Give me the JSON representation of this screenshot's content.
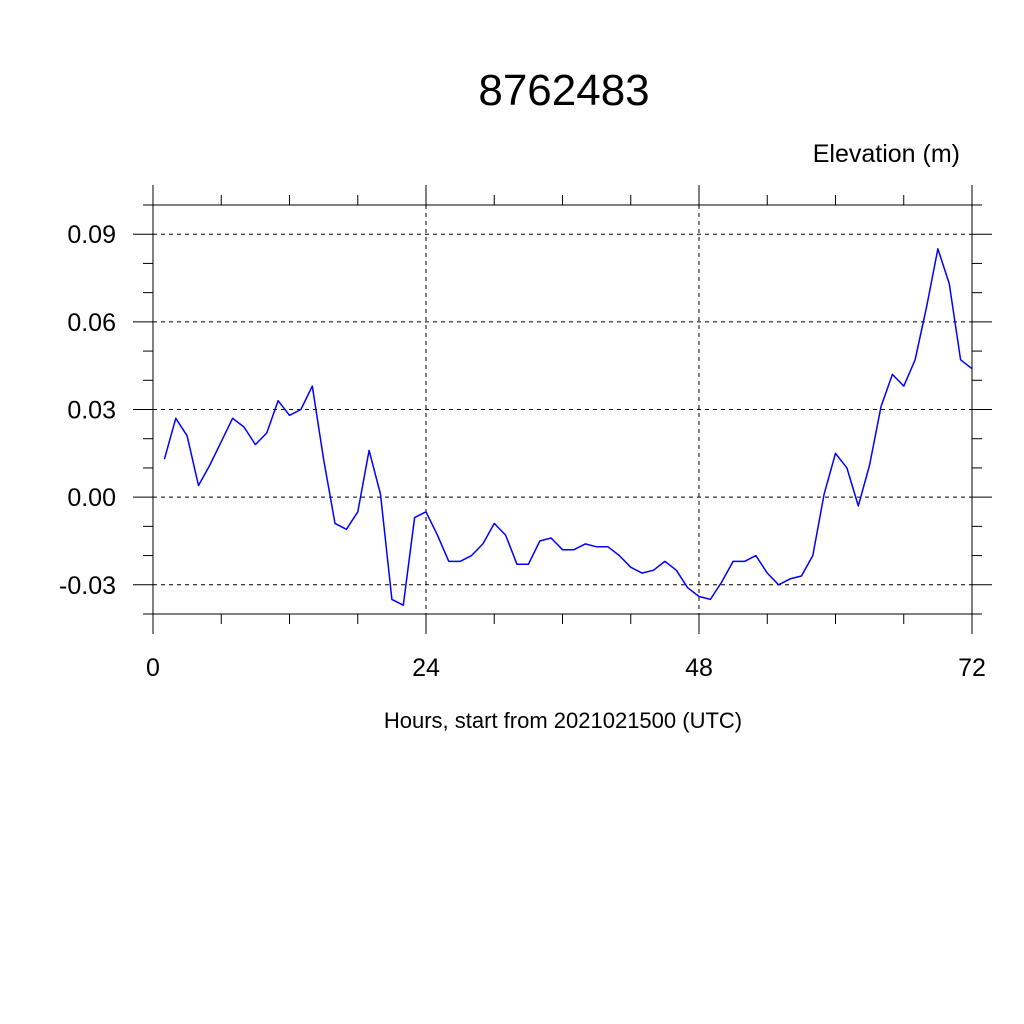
{
  "chart_data": {
    "type": "line",
    "title": "8762483",
    "unit_label": "Elevation (m)",
    "xlabel": "Hours, start from 2021021500 (UTC)",
    "ylabel": "",
    "xlim": [
      0,
      72
    ],
    "ylim": [
      -0.04,
      0.1
    ],
    "x_ticks": [
      0,
      24,
      48,
      72
    ],
    "x_tick_labels": [
      "0",
      "24",
      "48",
      "72"
    ],
    "y_ticks": [
      -0.03,
      0.0,
      0.03,
      0.06,
      0.09
    ],
    "y_tick_labels": [
      "-0.03",
      "0.00",
      "0.03",
      "0.06",
      "0.09"
    ],
    "grid": true,
    "grid_style": "dashed",
    "line_color": "#0000ff",
    "series": [
      {
        "x": [
          1,
          2,
          3,
          4,
          5,
          6,
          7,
          8,
          9,
          10,
          11,
          12,
          13,
          14,
          15,
          16,
          17,
          18,
          19,
          20,
          21,
          22,
          23,
          24,
          25,
          26,
          27,
          28,
          29,
          30,
          31,
          32,
          33,
          34,
          35,
          36,
          37,
          38,
          39,
          40,
          41,
          42,
          43,
          44,
          45,
          46,
          47,
          48,
          49,
          50,
          51,
          52,
          53,
          54,
          55,
          56,
          57,
          58,
          59,
          60,
          61,
          62,
          63,
          64,
          65,
          66,
          67,
          68,
          69,
          70,
          71,
          72
        ],
        "values": [
          0.013,
          0.027,
          0.021,
          0.004,
          0.011,
          0.019,
          0.027,
          0.024,
          0.018,
          0.022,
          0.033,
          0.028,
          0.03,
          0.038,
          0.013,
          -0.009,
          -0.011,
          -0.005,
          0.016,
          0.001,
          -0.035,
          -0.037,
          -0.007,
          -0.005,
          -0.013,
          -0.022,
          -0.022,
          -0.02,
          -0.016,
          -0.009,
          -0.013,
          -0.023,
          -0.023,
          -0.015,
          -0.014,
          -0.018,
          -0.018,
          -0.016,
          -0.017,
          -0.017,
          -0.02,
          -0.024,
          -0.026,
          -0.025,
          -0.022,
          -0.025,
          -0.031,
          -0.034,
          -0.035,
          -0.029,
          -0.022,
          -0.022,
          -0.02,
          -0.026,
          -0.03,
          -0.028,
          -0.027,
          -0.02,
          0.001,
          0.015,
          0.01,
          -0.003,
          0.011,
          0.031,
          0.042,
          0.038,
          0.047,
          0.065,
          0.085,
          0.073,
          0.047,
          0.044
        ]
      }
    ]
  }
}
